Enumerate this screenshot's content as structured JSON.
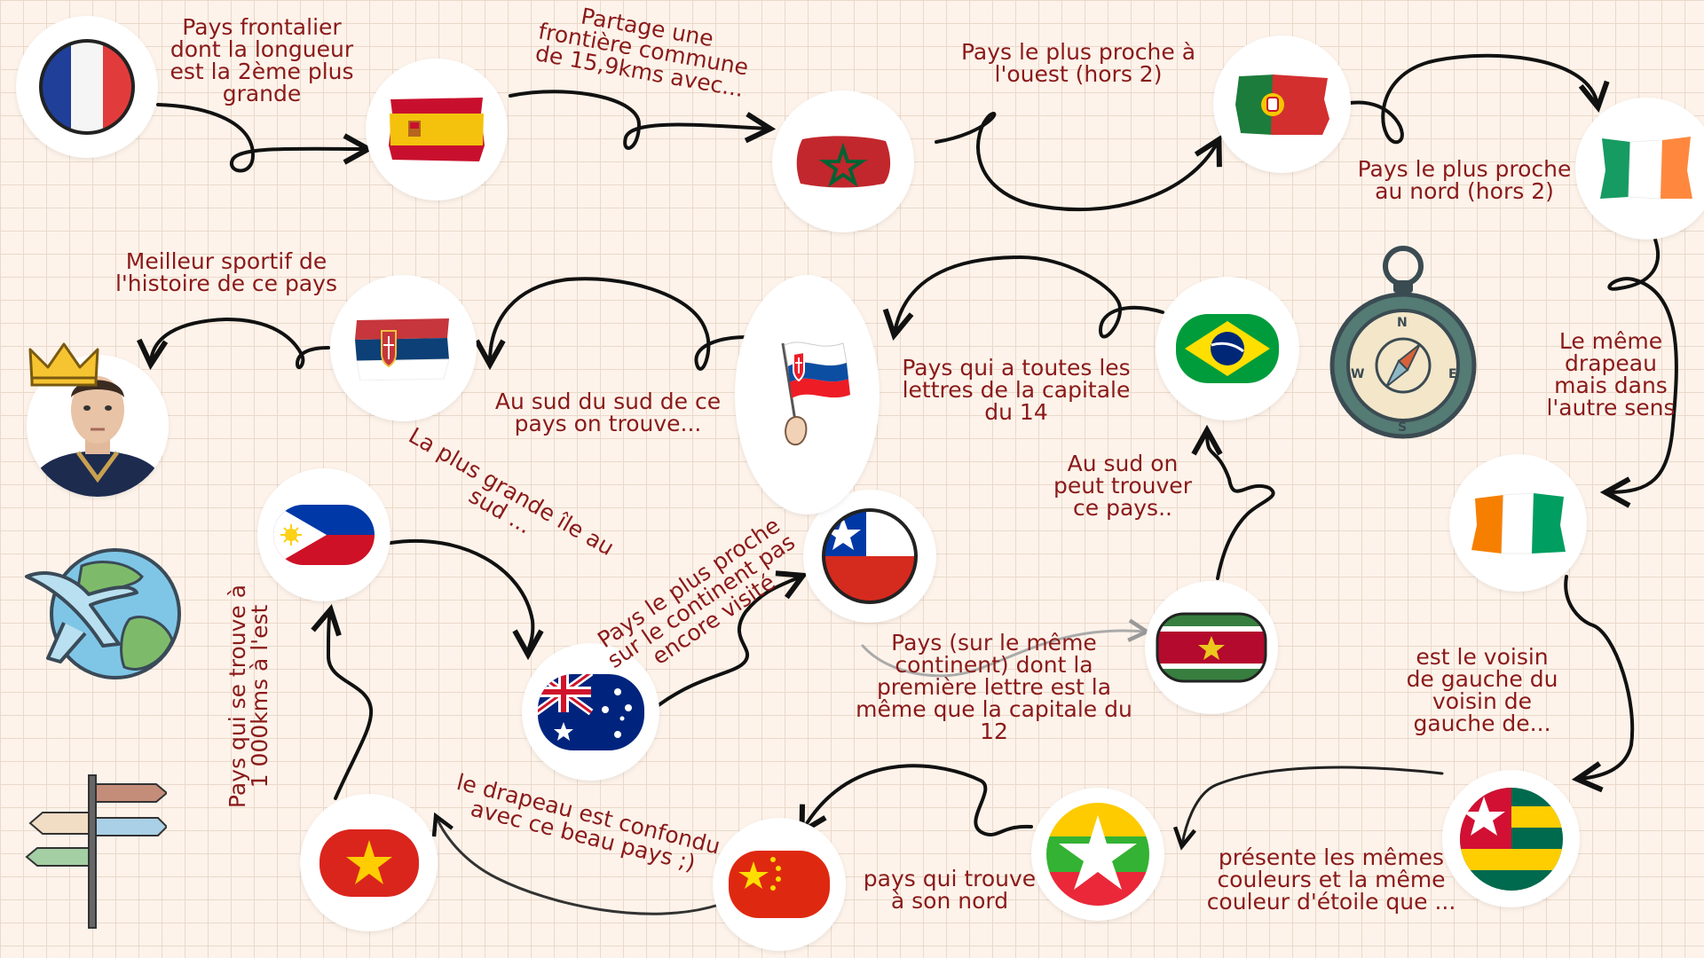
{
  "flags": [
    {
      "key": "france",
      "name": "france-flag"
    },
    {
      "key": "spain",
      "name": "spain-flag"
    },
    {
      "key": "morocco",
      "name": "morocco-flag"
    },
    {
      "key": "portugal",
      "name": "portugal-flag"
    },
    {
      "key": "ireland",
      "name": "ireland-flag"
    },
    {
      "key": "ivory_coast",
      "name": "ivory-coast-flag"
    },
    {
      "key": "togo",
      "name": "togo-flag"
    },
    {
      "key": "myanmar",
      "name": "myanmar-flag"
    },
    {
      "key": "china",
      "name": "china-flag"
    },
    {
      "key": "vietnam",
      "name": "vietnam-flag"
    },
    {
      "key": "philippines",
      "name": "philippines-flag"
    },
    {
      "key": "australia",
      "name": "australia-flag"
    },
    {
      "key": "chile",
      "name": "chile-flag"
    },
    {
      "key": "suriname",
      "name": "suriname-flag"
    },
    {
      "key": "brazil",
      "name": "brazil-flag"
    },
    {
      "key": "slovakia",
      "name": "slovakia-flag"
    },
    {
      "key": "serbia",
      "name": "serbia-flag"
    }
  ],
  "labels": {
    "france_spain": "Pays frontalier\ndont la longueur\nest la 2ème plus\ngrande",
    "spain_morocco": "Partage une\nfrontière commune\nde 15,9kms avec...",
    "morocco_portugal": "Pays le plus proche à\nl'ouest (hors 2)",
    "portugal_ireland": "Pays le plus proche\nau nord (hors 2)",
    "ireland_ivory": "Le même\ndrapeau\nmais dans\nl'autre sens",
    "ivory_togo": "est le voisin\nde gauche du\nvoisin de\ngauche de...",
    "togo_myanmar": "présente les mêmes\ncouleurs et la même\ncouleur d'étoile que ...",
    "myanmar_china": "pays qui trouve\nà son nord",
    "china_vietnam": "le drapeau est confondu\navec ce beau pays ;)",
    "vietnam_philippines": "Pays qui se trouve à\n1 000kms à l'est",
    "philippines_australia": "La plus grande île au\nsud ...",
    "australia_chile": "Pays le plus proche\nsur le continent pas\nencore visité",
    "chile_suriname": "Pays (sur le même\ncontinent) dont la\npremière lettre est la\nmême que la capitale du\n12",
    "suriname_brazil": "Au sud on\npeut trouver\nce pays..",
    "brazil_slovakia": "Pays qui a toutes les\nlettres de la capitale\ndu 14",
    "slovakia_serbia": "Au sud du sud de ce\npays on trouve...",
    "serbia_player": "Meilleur sportif de\nl'histoire de ce pays"
  },
  "decorations": [
    {
      "name": "crown-icon"
    },
    {
      "name": "basketball-player-portrait"
    },
    {
      "name": "globe-airplane-icon"
    },
    {
      "name": "signpost-icon"
    },
    {
      "name": "compass-icon"
    }
  ],
  "compass": {
    "n": "N",
    "s": "S",
    "e": "E",
    "w": "W"
  },
  "colors": {
    "label": "#8a1a1a",
    "arrow": "#111111",
    "background": "#fdf3ea"
  }
}
